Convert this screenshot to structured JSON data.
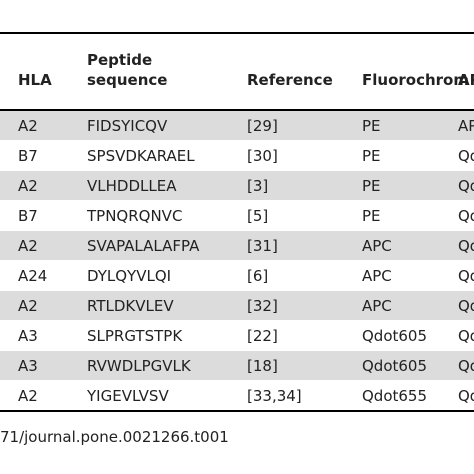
{
  "table": {
    "header": [
      "HLA",
      [
        "Peptide",
        "sequence"
      ],
      "Reference",
      "Fluorochrom",
      "AP"
    ],
    "rows": [
      [
        "A2",
        "FIDSYICQV",
        "[29]",
        "PE",
        "AP"
      ],
      [
        "B7",
        "SPSVDKARAEL",
        "[30]",
        "PE",
        "Qdo"
      ],
      [
        "A2",
        "VLHDDLLEA",
        "[3]",
        "PE",
        "Qd"
      ],
      [
        "B7",
        "TPNQRQNVC",
        "[5]",
        "PE",
        "Qd"
      ],
      [
        "A2",
        "SVAPALALAFPA",
        "[31]",
        "APC",
        "Qd"
      ],
      [
        "A24",
        "DYLQYVLQI",
        "[6]",
        "APC",
        "Qd"
      ],
      [
        "A2",
        "RTLDKVLEV",
        "[32]",
        "APC",
        "Qd"
      ],
      [
        "A3",
        "SLPRGTSTPK",
        "[22]",
        "Qdot605",
        "Qd"
      ],
      [
        "A3",
        "RVWDLPGVLK",
        "[18]",
        "Qdot605",
        "Qd"
      ],
      [
        "A2",
        "YIGEVLVSV",
        "[33,34]",
        "Qdot655",
        "Qd"
      ]
    ]
  },
  "footer": "71/journal.pone.0021266.t001"
}
